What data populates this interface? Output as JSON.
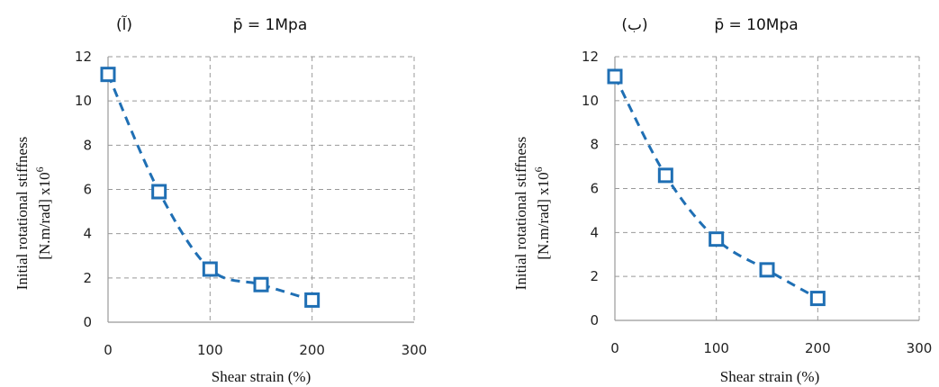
{
  "chart_data": [
    {
      "type": "scatter",
      "panel_label": "(آ)",
      "title": "p̄ = 1Mpa",
      "xlabel": "Shear strain (%)",
      "ylabel_line1": "Initial rotational stiffness",
      "ylabel_line2": "[N.m/rad] x10",
      "ylabel_exp": "6",
      "xlim": [
        0,
        300
      ],
      "ylim": [
        0,
        12
      ],
      "xticks": [
        0,
        100,
        200,
        300
      ],
      "yticks": [
        0,
        2,
        4,
        6,
        8,
        10,
        12
      ],
      "grid": true,
      "series": [
        {
          "x": [
            0,
            50,
            100,
            150,
            200
          ],
          "y": [
            11.2,
            5.9,
            2.4,
            1.7,
            1.0
          ]
        }
      ],
      "color": "#1f6fb4"
    },
    {
      "type": "scatter",
      "panel_label": "(ب)",
      "title": "p̄ = 10Mpa",
      "xlabel": "Shear strain (%)",
      "ylabel_line1": "Initial rotational stiffness",
      "ylabel_line2": "[N.m/rad] x10",
      "ylabel_exp": "6",
      "xlim": [
        0,
        300
      ],
      "ylim": [
        0,
        12
      ],
      "xticks": [
        0,
        100,
        200,
        300
      ],
      "yticks": [
        0,
        2,
        4,
        6,
        8,
        10,
        12
      ],
      "grid": true,
      "series": [
        {
          "x": [
            0,
            50,
            100,
            150,
            200
          ],
          "y": [
            11.1,
            6.6,
            3.7,
            2.3,
            1.0
          ]
        }
      ],
      "color": "#1f6fb4"
    }
  ]
}
